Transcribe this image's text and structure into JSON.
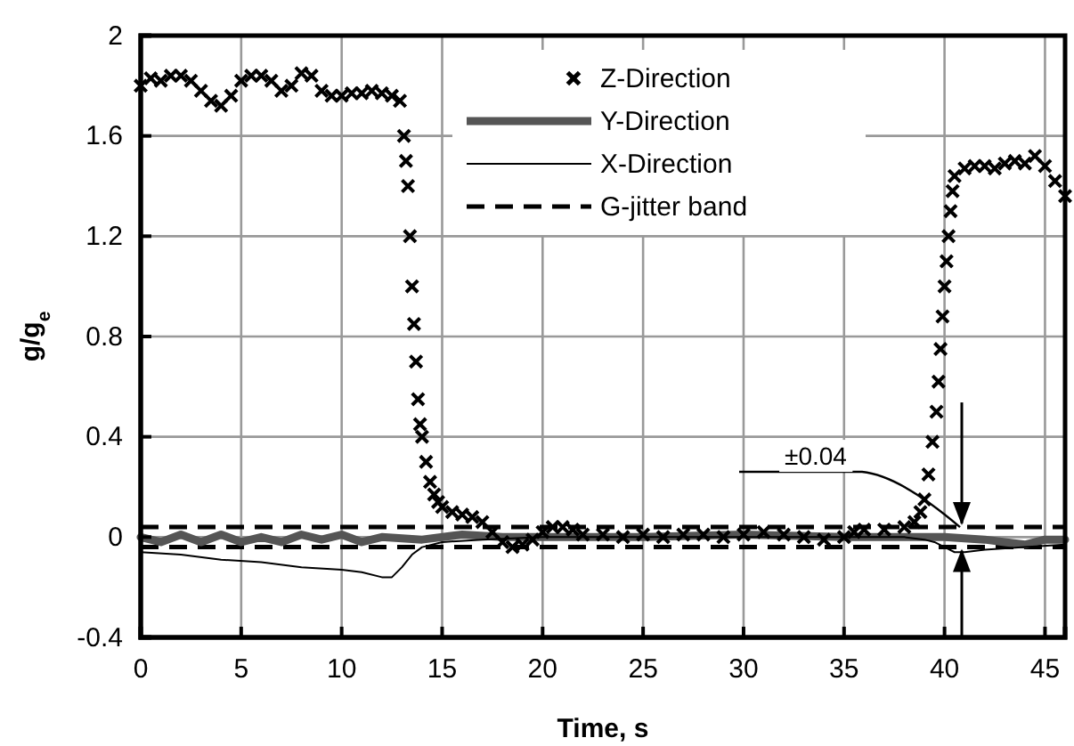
{
  "chart_data": {
    "type": "line",
    "xlabel": "Time, s",
    "ylabel": "g/g$_{e}$",
    "xlim": [
      0,
      46
    ],
    "xticks": [
      0,
      5,
      10,
      15,
      20,
      25,
      30,
      35,
      40,
      45
    ],
    "ylim": [
      -0.4,
      2
    ],
    "yticks": [
      -0.4,
      0,
      0.4,
      0.8,
      1.2,
      1.6,
      2
    ],
    "grid": true,
    "legend": "top",
    "series": [
      {
        "name": "Z-Direction",
        "type": "scatter",
        "marker": "cross",
        "color": "#000000",
        "x": [
          0,
          0.5,
          1,
          1.5,
          2,
          2.5,
          3,
          3.5,
          4,
          4.5,
          5,
          5.5,
          6,
          6.5,
          7,
          7.5,
          8,
          8.5,
          9,
          9.5,
          10,
          10.5,
          11,
          11.5,
          12,
          12.5,
          12.9,
          13.1,
          13.2,
          13.3,
          13.4,
          13.5,
          13.6,
          13.7,
          13.8,
          13.9,
          14,
          14.2,
          14.4,
          14.6,
          14.8,
          15,
          15.5,
          16,
          16.5,
          17,
          17.5,
          18,
          18.5,
          19,
          19.5,
          20,
          20.5,
          21,
          21.5,
          22,
          23,
          24,
          25,
          26,
          27,
          28,
          29,
          30,
          31,
          32,
          33,
          34,
          35,
          35.5,
          36,
          37,
          38,
          38.5,
          38.8,
          39,
          39.2,
          39.4,
          39.6,
          39.7,
          39.8,
          39.9,
          40,
          40.1,
          40.2,
          40.3,
          40.4,
          40.5,
          41,
          41.5,
          42,
          42.5,
          43,
          43.5,
          44,
          44.5,
          45,
          45.5,
          46
        ],
        "values": [
          1.8,
          1.83,
          1.82,
          1.84,
          1.84,
          1.82,
          1.78,
          1.74,
          1.72,
          1.76,
          1.82,
          1.84,
          1.84,
          1.82,
          1.78,
          1.8,
          1.85,
          1.84,
          1.78,
          1.76,
          1.76,
          1.77,
          1.77,
          1.78,
          1.77,
          1.76,
          1.74,
          1.6,
          1.5,
          1.4,
          1.2,
          1.0,
          0.85,
          0.7,
          0.55,
          0.45,
          0.4,
          0.3,
          0.22,
          0.17,
          0.14,
          0.12,
          0.1,
          0.09,
          0.08,
          0.06,
          0.02,
          -0.02,
          -0.04,
          -0.03,
          -0.01,
          0.02,
          0.04,
          0.04,
          0.03,
          0.01,
          0.01,
          0.0,
          0.01,
          0.0,
          0.01,
          0.01,
          0.0,
          0.01,
          0.02,
          0.01,
          0.0,
          -0.01,
          0.0,
          0.02,
          0.03,
          0.03,
          0.04,
          0.06,
          0.1,
          0.15,
          0.25,
          0.38,
          0.5,
          0.62,
          0.75,
          0.88,
          1.0,
          1.1,
          1.2,
          1.3,
          1.38,
          1.44,
          1.47,
          1.48,
          1.48,
          1.47,
          1.49,
          1.5,
          1.49,
          1.52,
          1.48,
          1.42,
          1.36
        ]
      },
      {
        "name": "Y-Direction",
        "line_style": "solid",
        "color": "#555555",
        "x": [
          0,
          1,
          2,
          3,
          4,
          5,
          6,
          7,
          8,
          9,
          10,
          11,
          12,
          14,
          16,
          18,
          20,
          25,
          30,
          35,
          40,
          42,
          43,
          44,
          45,
          46
        ],
        "values": [
          0,
          -0.02,
          0.01,
          -0.02,
          0.01,
          -0.02,
          0.0,
          -0.02,
          0.01,
          -0.01,
          0.01,
          -0.02,
          0.0,
          -0.01,
          0.01,
          0.0,
          0.0,
          0.0,
          0.01,
          0.0,
          0.0,
          -0.01,
          -0.02,
          -0.03,
          -0.01,
          -0.01
        ]
      },
      {
        "name": "X-Direction",
        "line_style": "solid",
        "color": "#000000",
        "x": [
          0,
          2,
          4,
          6,
          8,
          10,
          11,
          12,
          12.5,
          13,
          13.5,
          14,
          15,
          17,
          20,
          30,
          38,
          39,
          39.5,
          40,
          40.5,
          41,
          42,
          44,
          46
        ],
        "values": [
          -0.06,
          -0.07,
          -0.09,
          -0.1,
          -0.12,
          -0.13,
          -0.14,
          -0.16,
          -0.16,
          -0.12,
          -0.07,
          -0.04,
          -0.02,
          -0.01,
          0.0,
          0.0,
          0.0,
          -0.01,
          -0.02,
          -0.04,
          -0.06,
          -0.06,
          -0.05,
          -0.04,
          -0.03
        ]
      }
    ],
    "ref_lines": [
      {
        "axis": "y",
        "value": 0.04,
        "label": "G-jitter band",
        "line_style": "dashed",
        "color": "#000000"
      },
      {
        "axis": "y",
        "value": -0.04,
        "label": null,
        "line_style": "dashed",
        "color": "#000000"
      }
    ],
    "annotations": [
      "±0.04"
    ]
  }
}
